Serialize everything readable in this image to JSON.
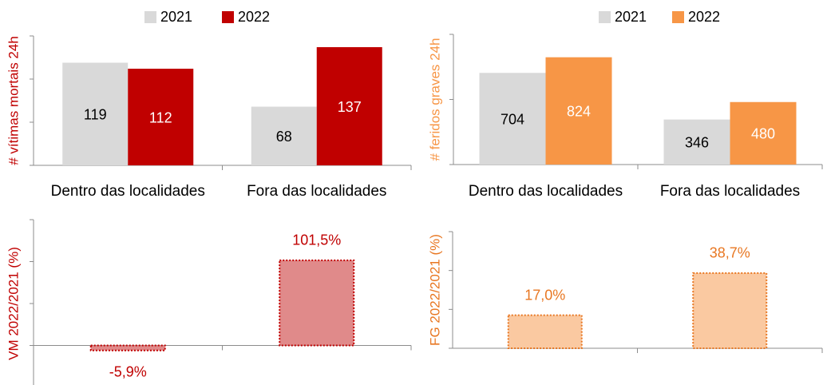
{
  "chart_data": [
    {
      "type": "bar",
      "ylabel": "# vítimas mortais 24h",
      "categories": [
        "Dentro das localidades",
        "Fora das localidades"
      ],
      "series": [
        {
          "name": "2021",
          "color": "#d9d9d9",
          "values": [
            119,
            68
          ]
        },
        {
          "name": "2022",
          "color": "#c00000",
          "values": [
            112,
            137
          ]
        }
      ],
      "ylim": [
        0,
        150
      ],
      "yticks": [
        0,
        50,
        100,
        150
      ]
    },
    {
      "type": "bar",
      "ylabel": "# feridos graves 24h",
      "categories": [
        "Dentro das localidades",
        "Fora das localidades"
      ],
      "series": [
        {
          "name": "2021",
          "color": "#d9d9d9",
          "values": [
            704,
            346
          ]
        },
        {
          "name": "2022",
          "color": "#f79646",
          "values": [
            824,
            480
          ]
        }
      ],
      "ylim": [
        0,
        1000
      ],
      "yticks": [
        0,
        500,
        1000
      ]
    },
    {
      "type": "pct",
      "ylabel": "VM 2022/2021 (%)",
      "values": [
        -5.9,
        101.5
      ],
      "value_labels": [
        "-5,9%",
        "101,5%"
      ],
      "color": "#e08a8a",
      "edge_color": "#c00000",
      "ylim": [
        -50,
        150
      ],
      "yticks": [
        -50,
        0,
        50,
        100,
        150
      ]
    },
    {
      "type": "pct",
      "ylabel": "FG 2022/2021 (%)",
      "values": [
        17.0,
        38.7
      ],
      "value_labels": [
        "17,0%",
        "38,7%"
      ],
      "color": "#fac9a1",
      "edge_color": "#e87722",
      "ylim": [
        0,
        60
      ],
      "yticks": [
        0,
        20,
        40,
        60
      ]
    }
  ]
}
